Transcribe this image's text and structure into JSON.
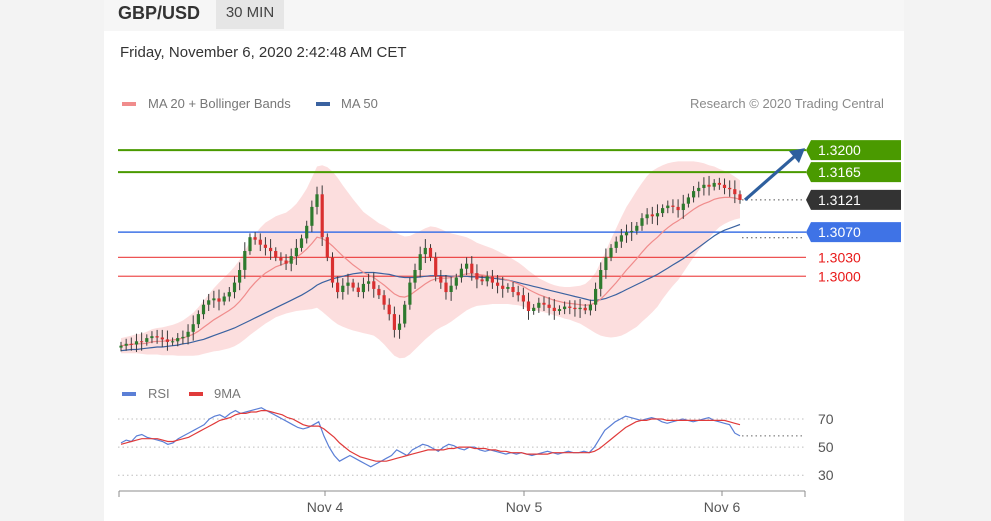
{
  "header": {
    "symbol": "GBP/USD",
    "timeframe": "30 MIN",
    "datetime": "Friday, November 6, 2020 2:42:48 AM CET",
    "credit": "Research © 2020 Trading Central"
  },
  "legend_price": [
    {
      "label": "MA 20 + Bollinger Bands",
      "color": "#f08c8c"
    },
    {
      "label": "MA 50",
      "color": "#3a62a0"
    }
  ],
  "legend_rsi": [
    {
      "label": "RSI",
      "color": "#5b7fd6"
    },
    {
      "label": "9MA",
      "color": "#e03a3a"
    }
  ],
  "colors": {
    "resistance": "#4a9a00",
    "pivot": "#3f73e6",
    "support": "#e81a1a",
    "current": "#333333",
    "arrow": "#2e5f9e",
    "band": "#fbd8d8",
    "candle": "#2e7a2e",
    "candle_down": "#d93030"
  },
  "chart_data": [
    {
      "type": "candlestick",
      "title": "",
      "x_ticks": [
        "Nov 4",
        "Nov 5",
        "Nov 6"
      ],
      "ylim": [
        1.288,
        1.3235
      ],
      "levels": [
        {
          "label": "1.3200",
          "value": 1.32,
          "kind": "resistance"
        },
        {
          "label": "1.3165",
          "value": 1.3165,
          "kind": "resistance"
        },
        {
          "label": "1.3121",
          "value": 1.3121,
          "kind": "current"
        },
        {
          "label": "1.3070",
          "value": 1.307,
          "kind": "pivot"
        },
        {
          "label": "1.3030",
          "value": 1.303,
          "kind": "support"
        },
        {
          "label": "1.3000",
          "value": 1.3,
          "kind": "support"
        }
      ],
      "close": [
        1.289,
        1.2893,
        1.2892,
        1.2897,
        1.2896,
        1.2902,
        1.2905,
        1.2903,
        1.29,
        1.2896,
        1.2897,
        1.2902,
        1.2904,
        1.2912,
        1.2924,
        1.294,
        1.2955,
        1.2962,
        1.2965,
        1.296,
        1.2968,
        1.2975,
        1.299,
        1.301,
        1.304,
        1.3062,
        1.3058,
        1.305,
        1.3045,
        1.304,
        1.303,
        1.3025,
        1.302,
        1.3032,
        1.3045,
        1.306,
        1.308,
        1.311,
        1.313,
        1.3062,
        1.303,
        1.299,
        1.2975,
        1.2985,
        1.299,
        1.2982,
        1.2975,
        1.2988,
        1.2992,
        1.298,
        1.297,
        1.2955,
        1.294,
        1.2915,
        1.2925,
        1.2955,
        1.299,
        1.301,
        1.3035,
        1.3045,
        1.303,
        1.3,
        1.299,
        1.2975,
        1.2985,
        1.2998,
        1.3012,
        1.302,
        1.3005,
        1.2995,
        1.2992,
        1.3,
        1.299,
        1.2985,
        1.298,
        1.2983,
        1.2975,
        1.297,
        1.296,
        1.2945,
        1.295,
        1.2958,
        1.2955,
        1.295,
        1.2945,
        1.2948,
        1.2952,
        1.295,
        1.2948,
        1.295,
        1.2946,
        1.2955,
        1.298,
        1.301,
        1.303,
        1.3045,
        1.3055,
        1.3065,
        1.307,
        1.3072,
        1.308,
        1.3092,
        1.3098,
        1.3095,
        1.31,
        1.3108,
        1.3112,
        1.311,
        1.3105,
        1.3115,
        1.3125,
        1.3135,
        1.314,
        1.3145,
        1.3142,
        1.3148,
        1.3145,
        1.314,
        1.3138,
        1.313,
        1.3121
      ],
      "ma20": [
        1.289,
        1.2891,
        1.2892,
        1.2893,
        1.2893,
        1.2894,
        1.2896,
        1.2897,
        1.2897,
        1.2898,
        1.2899,
        1.29,
        1.2902,
        1.2905,
        1.2908,
        1.2913,
        1.2919,
        1.2925,
        1.2931,
        1.2936,
        1.2941,
        1.2946,
        1.2952,
        1.296,
        1.297,
        1.2981,
        1.299,
        1.2998,
        1.3005,
        1.301,
        1.3015,
        1.3018,
        1.3021,
        1.3025,
        1.303,
        1.3036,
        1.3043,
        1.3052,
        1.3062,
        1.306,
        1.3055,
        1.3048,
        1.304,
        1.3032,
        1.3025,
        1.3018,
        1.3012,
        1.3006,
        1.3002,
        1.2998,
        1.2992,
        1.2986,
        1.2979,
        1.2972,
        1.2968,
        1.2967,
        1.297,
        1.2976,
        1.2982,
        1.2988,
        1.2993,
        1.2996,
        1.2997,
        1.2997,
        1.2998,
        1.3,
        1.3002,
        1.3004,
        1.3004,
        1.3003,
        1.3002,
        1.3001,
        1.3,
        1.2998,
        1.2996,
        1.2994,
        1.2991,
        1.2988,
        1.2984,
        1.2979,
        1.2975,
        1.2971,
        1.2968,
        1.2965,
        1.2962,
        1.296,
        1.2958,
        1.2957,
        1.2956,
        1.2955,
        1.2954,
        1.2955,
        1.2958,
        1.2964,
        1.2972,
        1.2981,
        1.299,
        1.3,
        1.301,
        1.3019,
        1.3028,
        1.3038,
        1.3047,
        1.3055,
        1.3062,
        1.307,
        1.3077,
        1.3083,
        1.3088,
        1.3094,
        1.31,
        1.3106,
        1.3111,
        1.3115,
        1.3118,
        1.3122,
        1.3124,
        1.3125,
        1.3125,
        1.3124,
        1.3122
      ],
      "ma50": [
        1.2882,
        1.2883,
        1.2884,
        1.2884,
        1.2885,
        1.2886,
        1.2887,
        1.2888,
        1.2888,
        1.2889,
        1.289,
        1.2891,
        1.2893,
        1.2894,
        1.2896,
        1.2898,
        1.29,
        1.2903,
        1.2906,
        1.2909,
        1.2912,
        1.2915,
        1.2918,
        1.2922,
        1.2926,
        1.293,
        1.2934,
        1.2938,
        1.2942,
        1.2946,
        1.295,
        1.2954,
        1.2958,
        1.2962,
        1.2966,
        1.297,
        1.2975,
        1.298,
        1.2986,
        1.299,
        1.2993,
        1.2996,
        1.2998,
        1.3,
        1.3002,
        1.3004,
        1.3005,
        1.3006,
        1.3006,
        1.3006,
        1.3005,
        1.3004,
        1.3003,
        1.3001,
        1.2999,
        1.2998,
        1.2998,
        1.2998,
        1.2999,
        1.3,
        1.3001,
        1.3001,
        1.3001,
        1.3001,
        1.3,
        1.3,
        1.3,
        1.3,
        1.2999,
        1.2999,
        1.2998,
        1.2998,
        1.2997,
        1.2996,
        1.2995,
        1.2994,
        1.2992,
        1.299,
        1.2988,
        1.2986,
        1.2984,
        1.2982,
        1.298,
        1.2978,
        1.2976,
        1.2974,
        1.2972,
        1.297,
        1.2968,
        1.2966,
        1.2964,
        1.2962,
        1.2962,
        1.2963,
        1.2965,
        1.2968,
        1.2971,
        1.2975,
        1.2979,
        1.2983,
        1.2987,
        1.2991,
        1.2995,
        1.2999,
        1.3003,
        1.3008,
        1.3013,
        1.3018,
        1.3023,
        1.3028,
        1.3034,
        1.304,
        1.3046,
        1.3052,
        1.3058,
        1.3064,
        1.3069,
        1.3073,
        1.3076,
        1.3079,
        1.3082
      ],
      "band_width": [
        0.0012,
        0.0013,
        0.0014,
        0.0015,
        0.0016,
        0.0018,
        0.002,
        0.0021,
        0.0022,
        0.0023,
        0.0024,
        0.0026,
        0.0028,
        0.0031,
        0.0034,
        0.0038,
        0.0042,
        0.0046,
        0.005,
        0.0054,
        0.0057,
        0.006,
        0.0063,
        0.0066,
        0.007,
        0.0074,
        0.0077,
        0.0079,
        0.008,
        0.008,
        0.008,
        0.008,
        0.008,
        0.0082,
        0.0085,
        0.009,
        0.0096,
        0.0104,
        0.0112,
        0.0116,
        0.0118,
        0.0118,
        0.0116,
        0.0112,
        0.0108,
        0.0104,
        0.01,
        0.0096,
        0.0094,
        0.0092,
        0.0092,
        0.0094,
        0.0096,
        0.0098,
        0.0098,
        0.0096,
        0.0094,
        0.0092,
        0.009,
        0.0088,
        0.0086,
        0.0082,
        0.0078,
        0.0074,
        0.007,
        0.0066,
        0.0062,
        0.0058,
        0.0054,
        0.005,
        0.0048,
        0.0046,
        0.0044,
        0.0042,
        0.004,
        0.0038,
        0.0036,
        0.0034,
        0.0032,
        0.003,
        0.0028,
        0.0026,
        0.0025,
        0.0024,
        0.0024,
        0.0024,
        0.0025,
        0.0026,
        0.0028,
        0.003,
        0.0034,
        0.004,
        0.0048,
        0.0058,
        0.0068,
        0.0078,
        0.0086,
        0.0094,
        0.01,
        0.0104,
        0.0108,
        0.011,
        0.0112,
        0.0112,
        0.011,
        0.0106,
        0.0102,
        0.0098,
        0.0094,
        0.0088,
        0.0082,
        0.0076,
        0.007,
        0.0064,
        0.0058,
        0.0052,
        0.0046,
        0.0042,
        0.0038,
        0.0034,
        0.003
      ]
    },
    {
      "type": "line",
      "title": "",
      "y_ticks": [
        70,
        50,
        30
      ],
      "ylim": [
        28,
        80
      ],
      "series": [
        {
          "name": "RSI",
          "values": [
            53,
            55,
            54,
            58,
            59,
            57,
            56,
            55,
            54,
            52,
            53,
            56,
            58,
            60,
            62,
            64,
            66,
            70,
            72,
            73,
            71,
            74,
            76,
            74,
            75,
            76,
            77,
            78,
            76,
            74,
            72,
            70,
            68,
            66,
            64,
            63,
            64,
            66,
            68,
            58,
            50,
            44,
            40,
            42,
            44,
            42,
            40,
            38,
            36,
            38,
            40,
            42,
            44,
            48,
            46,
            44,
            48,
            50,
            52,
            51,
            49,
            47,
            50,
            52,
            51,
            49,
            48,
            50,
            50,
            48,
            47,
            48,
            47,
            46,
            45,
            46,
            45,
            46,
            45,
            44,
            45,
            46,
            47,
            46,
            45,
            46,
            47,
            46,
            46,
            47,
            46,
            50,
            56,
            62,
            65,
            68,
            70,
            72,
            71,
            70,
            69,
            70,
            71,
            70,
            68,
            67,
            68,
            69,
            70,
            69,
            68,
            69,
            70,
            71,
            69,
            68,
            67,
            66,
            60,
            58
          ]
        },
        {
          "name": "9MA",
          "values": [
            52,
            53,
            54,
            55,
            56,
            56,
            56,
            56,
            55,
            54,
            54,
            55,
            56,
            57,
            59,
            61,
            63,
            65,
            67,
            69,
            70,
            71,
            73,
            74,
            74,
            75,
            75,
            76,
            76,
            75,
            74,
            73,
            71,
            70,
            68,
            66,
            65,
            65,
            65,
            63,
            60,
            57,
            53,
            50,
            47,
            45,
            43,
            42,
            41,
            40,
            40,
            40,
            41,
            42,
            43,
            44,
            45,
            46,
            47,
            48,
            48,
            48,
            48,
            49,
            49,
            50,
            50,
            50,
            49,
            49,
            49,
            48,
            48,
            47,
            47,
            46,
            46,
            46,
            45,
            45,
            45,
            45,
            45,
            46,
            46,
            46,
            46,
            46,
            46,
            46,
            46,
            47,
            49,
            52,
            55,
            58,
            61,
            64,
            66,
            68,
            69,
            69,
            70,
            70,
            70,
            69,
            69,
            69,
            69,
            69,
            69,
            69,
            69,
            69,
            69,
            69,
            69,
            68,
            67,
            66
          ]
        }
      ]
    }
  ]
}
